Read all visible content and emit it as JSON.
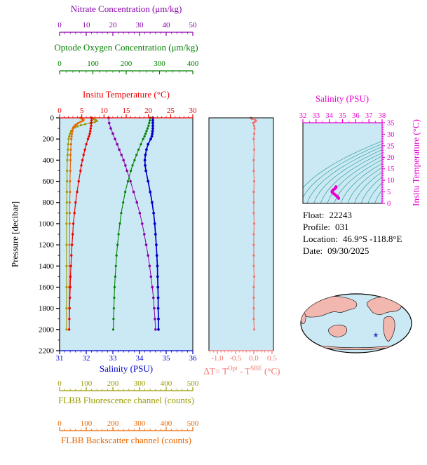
{
  "colors": {
    "nitrate": "#8800aa",
    "oxygen": "#008000",
    "temperature": "#ee0000",
    "salinity": "#0000cd",
    "pressure": "#000000",
    "fluorescence": "#9a9a00",
    "backscatter": "#e86600",
    "delta_t": "#f4736d",
    "ts": "#e800d0",
    "plot_bg": "#cbe9f4",
    "contour": "#2f9e9e",
    "land": "#f2b8b0",
    "star": "#2840c8"
  },
  "axes": {
    "nitrate_title": "Nitrate Concentration (μm/kg)",
    "oxygen_title": "Optode Oxygen Concentration (μm/kg)",
    "temperature_title": "Insitu Temperature (°C)",
    "pressure_title": "Pressure [decibar]",
    "salinity_title": "Salinity (PSU)",
    "fluorescence_title": "FLBB Fluorescence channel (counts)",
    "backscatter_title": "FLBB Backscatter channel (counts)",
    "dt_title": {
      "pre": "ΔT= T",
      "sup1": "Opt",
      "mid": " - T",
      "sup2": "SBE",
      "post": " (°C)"
    },
    "ts_salinity_title": "Salinity (PSU)",
    "ts_temperature_title": "Insitu Temperature (°C)"
  },
  "info": {
    "float_label": "Float:",
    "float_value": "22243",
    "profile_label": "Profile:",
    "profile_value": "031",
    "location_label": "Location:",
    "location_value": "46.9°S -118.8°E",
    "date_label": "Date:",
    "date_value": "09/30/2025"
  },
  "chart_data": [
    {
      "id": "main-profile",
      "type": "line",
      "title": "Float profile vs pressure",
      "y_axis": {
        "label": "Pressure [decibar]",
        "range": [
          0,
          2200
        ],
        "direction": "down",
        "ticks": [
          0,
          200,
          400,
          600,
          800,
          1000,
          1200,
          1400,
          1600,
          1800,
          2000,
          2200
        ]
      },
      "x_axes": [
        {
          "id": "nitrate",
          "label": "Nitrate Concentration (μm/kg)",
          "range": [
            0,
            50
          ],
          "ticks": [
            0,
            10,
            20,
            30,
            40,
            50
          ],
          "color": "#8800aa",
          "position": "top-outer-2"
        },
        {
          "id": "oxygen",
          "label": "Optode Oxygen Concentration (μm/kg)",
          "range": [
            0,
            400
          ],
          "ticks": [
            0,
            100,
            200,
            300,
            400
          ],
          "color": "#008000",
          "position": "top-outer-1"
        },
        {
          "id": "temperature",
          "label": "Insitu Temperature (°C)",
          "range": [
            0,
            30
          ],
          "ticks": [
            0,
            5,
            10,
            15,
            20,
            25,
            30
          ],
          "color": "#ee0000",
          "position": "top"
        },
        {
          "id": "salinity",
          "label": "Salinity (PSU)",
          "range": [
            31,
            36
          ],
          "ticks": [
            31,
            32,
            33,
            34,
            35,
            36
          ],
          "color": "#0000cd",
          "position": "bottom"
        },
        {
          "id": "fluorescence",
          "label": "FLBB Fluorescence channel (counts)",
          "range": [
            0,
            500
          ],
          "ticks": [
            0,
            100,
            200,
            300,
            400,
            500
          ],
          "color": "#9a9a00",
          "position": "bottom-outer-1"
        },
        {
          "id": "backscatter",
          "label": "FLBB Backscatter channel (counts)",
          "range": [
            0,
            500
          ],
          "ticks": [
            0,
            100,
            200,
            300,
            400,
            500
          ],
          "color": "#e86600",
          "position": "bottom-outer-2"
        }
      ],
      "series": [
        {
          "name": "FLBB Fluorescence (counts)",
          "axis": "fluorescence",
          "color": "#9a9a00",
          "pressures": [
            0,
            10,
            20,
            30,
            40,
            50,
            60,
            70,
            80,
            90,
            100,
            125,
            150,
            175,
            200,
            250,
            300,
            350,
            400,
            500,
            600,
            700,
            800,
            900,
            1000,
            1200,
            1400,
            1600,
            1800,
            2000
          ],
          "values": [
            118,
            128,
            135,
            140,
            132,
            115,
            96,
            80,
            68,
            58,
            50,
            43,
            39,
            36,
            34,
            32,
            31,
            30,
            29,
            28,
            28,
            27,
            27,
            27,
            26,
            26,
            26,
            26,
            26,
            26
          ]
        },
        {
          "name": "FLBB Backscatter (counts)",
          "axis": "backscatter",
          "color": "#e86600",
          "pressures": [
            0,
            10,
            20,
            30,
            40,
            50,
            60,
            70,
            80,
            90,
            100,
            125,
            150,
            175,
            200,
            250,
            300,
            350,
            400,
            500,
            600,
            700,
            800,
            900,
            1000,
            1200,
            1400,
            1600,
            1800,
            2000
          ],
          "values": [
            78,
            85,
            90,
            86,
            78,
            70,
            64,
            59,
            55,
            52,
            50,
            48,
            46,
            45,
            44,
            43,
            42,
            41,
            41,
            40,
            39,
            39,
            38,
            38,
            38,
            37,
            37,
            36,
            36,
            36
          ]
        },
        {
          "name": "Nitrate (μm/kg)",
          "axis": "nitrate",
          "color": "#8800aa",
          "pressures": [
            0,
            50,
            100,
            150,
            200,
            250,
            300,
            350,
            400,
            450,
            500,
            600,
            700,
            800,
            900,
            1000,
            1100,
            1200,
            1300,
            1400,
            1500,
            1600,
            1700,
            1800,
            1900,
            2000
          ],
          "values": [
            18.4,
            18.6,
            19.2,
            20.0,
            20.8,
            21.6,
            22.4,
            23.2,
            24.0,
            24.7,
            25.3,
            26.6,
            27.8,
            29.0,
            30.1,
            31.0,
            31.8,
            32.5,
            33.2,
            33.8,
            34.3,
            34.8,
            35.2,
            35.5,
            35.8,
            36.0
          ]
        },
        {
          "name": "Optode Oxygen (μm/kg)",
          "axis": "oxygen",
          "color": "#008000",
          "pressures": [
            0,
            25,
            50,
            75,
            100,
            125,
            150,
            175,
            200,
            250,
            300,
            350,
            400,
            450,
            500,
            600,
            700,
            800,
            900,
            1000,
            1100,
            1200,
            1300,
            1400,
            1500,
            1600,
            1700,
            1800,
            1900,
            2000
          ],
          "values": [
            272,
            271,
            269,
            267,
            264,
            261,
            258,
            255,
            251,
            244,
            237,
            231,
            225,
            219,
            214,
            205,
            197,
            191,
            185,
            181,
            177,
            174,
            171,
            169,
            167,
            165,
            164,
            163,
            162,
            161
          ]
        },
        {
          "name": "Insitu Temperature (°C)",
          "axis": "temperature",
          "color": "#ee0000",
          "pressures": [
            0,
            25,
            50,
            75,
            100,
            125,
            150,
            175,
            200,
            250,
            300,
            350,
            400,
            450,
            500,
            600,
            700,
            800,
            900,
            1000,
            1100,
            1200,
            1300,
            1400,
            1500,
            1600,
            1700,
            1800,
            1900,
            2000
          ],
          "values": [
            7.2,
            7.2,
            7.15,
            7.1,
            7.0,
            6.9,
            6.8,
            6.6,
            6.4,
            6.0,
            5.7,
            5.4,
            5.15,
            4.9,
            4.7,
            4.3,
            3.95,
            3.6,
            3.35,
            3.1,
            2.95,
            2.8,
            2.65,
            2.55,
            2.45,
            2.38,
            2.3,
            2.25,
            2.2,
            2.15
          ]
        },
        {
          "name": "Salinity (PSU)",
          "axis": "salinity",
          "color": "#0000cd",
          "pressures": [
            0,
            25,
            50,
            75,
            100,
            125,
            150,
            175,
            200,
            250,
            300,
            350,
            400,
            450,
            500,
            600,
            700,
            800,
            900,
            1000,
            1100,
            1200,
            1300,
            1400,
            1500,
            1600,
            1700,
            1800,
            1900,
            2000
          ],
          "values": [
            34.5,
            34.5,
            34.5,
            34.5,
            34.5,
            34.49,
            34.48,
            34.46,
            34.42,
            34.32,
            34.26,
            34.22,
            34.2,
            34.21,
            34.24,
            34.32,
            34.4,
            34.47,
            34.53,
            34.57,
            34.6,
            34.63,
            34.65,
            34.67,
            34.68,
            34.69,
            34.7,
            34.7,
            34.71,
            34.71
          ]
        }
      ]
    },
    {
      "id": "delta-t",
      "type": "scatter",
      "title": "Optode minus SBE temperature difference",
      "x_axis": {
        "label": "ΔT= TOpt - TSBE (°C)",
        "range": [
          -1.23,
          0.54
        ],
        "tick_values": [
          -1.0,
          -0.5,
          0.0,
          0.5
        ],
        "tick_labels": [
          "-1.0",
          "-0.5",
          "0.0",
          "0.5"
        ],
        "color": "#f4736d"
      },
      "y_axis": {
        "label": "Pressure [decibar]",
        "range": [
          0,
          2200
        ],
        "direction": "down"
      },
      "series": [
        {
          "name": "ΔT",
          "color": "#f4736d",
          "pressures": [
            0,
            10,
            20,
            30,
            40,
            50,
            75,
            100,
            150,
            200,
            300,
            400,
            500,
            600,
            700,
            800,
            900,
            1000,
            1100,
            1200,
            1300,
            1400,
            1500,
            1600,
            1700,
            1800,
            1900,
            2000
          ],
          "values": [
            -0.08,
            -0.05,
            0.04,
            0.06,
            0.02,
            -0.02,
            0.01,
            0.02,
            0.01,
            0.0,
            0.01,
            0.0,
            0.0,
            0.01,
            0.0,
            0.0,
            0.0,
            0.01,
            0.0,
            0.0,
            0.0,
            0.0,
            0.01,
            0.0,
            0.0,
            0.0,
            0.0,
            0.01
          ]
        }
      ]
    },
    {
      "id": "ts-diagram",
      "type": "scatter",
      "title": "Temperature-Salinity diagram",
      "x_axis": {
        "label": "Salinity (PSU)",
        "range": [
          32,
          38
        ],
        "ticks": [
          32,
          33,
          34,
          35,
          36,
          37,
          38
        ],
        "color": "#e800d0"
      },
      "y_axis": {
        "label": "Insitu Temperature (°C)",
        "range": [
          0,
          35
        ],
        "ticks": [
          0,
          5,
          10,
          15,
          20,
          25,
          30,
          35
        ],
        "color": "#e800d0"
      },
      "contours": {
        "description": "potential density isopycnals",
        "color": "#2f9e9e"
      },
      "series": [
        {
          "name": "T-S profile",
          "color": "#e800d0",
          "points": [
            [
              34.5,
              7.2
            ],
            [
              34.5,
              7.2
            ],
            [
              34.5,
              7.15
            ],
            [
              34.5,
              7.1
            ],
            [
              34.5,
              7.0
            ],
            [
              34.49,
              6.9
            ],
            [
              34.48,
              6.8
            ],
            [
              34.46,
              6.6
            ],
            [
              34.42,
              6.4
            ],
            [
              34.32,
              6.0
            ],
            [
              34.26,
              5.7
            ],
            [
              34.22,
              5.4
            ],
            [
              34.2,
              5.15
            ],
            [
              34.21,
              4.9
            ],
            [
              34.24,
              4.7
            ],
            [
              34.32,
              4.3
            ],
            [
              34.4,
              3.95
            ],
            [
              34.47,
              3.6
            ],
            [
              34.53,
              3.35
            ],
            [
              34.57,
              3.1
            ],
            [
              34.6,
              2.95
            ],
            [
              34.63,
              2.8
            ],
            [
              34.65,
              2.65
            ],
            [
              34.67,
              2.55
            ],
            [
              34.68,
              2.45
            ],
            [
              34.69,
              2.38
            ],
            [
              34.7,
              2.3
            ],
            [
              34.7,
              2.25
            ],
            [
              34.71,
              2.2
            ],
            [
              34.71,
              2.15
            ]
          ]
        }
      ]
    }
  ],
  "map": {
    "marker": "float-location-star",
    "marker_glyph": "★"
  }
}
